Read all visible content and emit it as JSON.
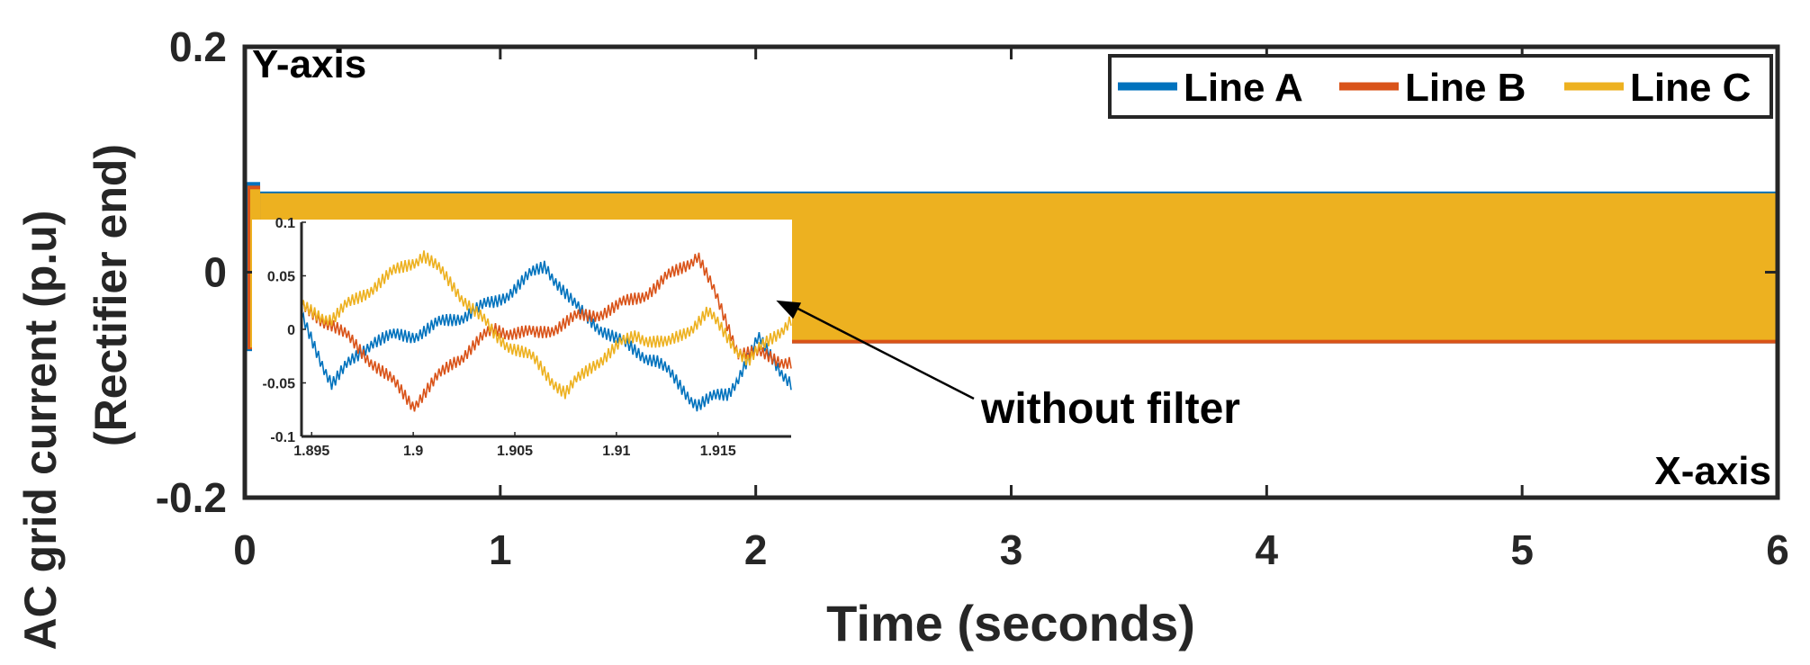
{
  "chart_data": [
    {
      "type": "line",
      "title": "",
      "xlabel": "Time (seconds)",
      "ylabel_lines": [
        "AC grid current (p.u)",
        "(Rectifier end)"
      ],
      "xlim": [
        0,
        6
      ],
      "ylim": [
        -0.2,
        0.2
      ],
      "x_ticks": [
        0,
        1,
        2,
        3,
        4,
        5,
        6
      ],
      "x_tick_labels": [
        "0",
        "1",
        "2",
        "3",
        "4",
        "5",
        "6"
      ],
      "y_ticks": [
        -0.2,
        0,
        0.2
      ],
      "y_tick_labels": [
        "-0.2",
        "0",
        "0.2"
      ],
      "corner_labels": {
        "y_axis": "Y-axis",
        "x_axis": "X-axis"
      },
      "legend": {
        "position": "top-right",
        "entries": [
          "Line A",
          "Line B",
          "Line C"
        ]
      },
      "series": [
        {
          "name": "Line A",
          "color": "#0072BD",
          "band": [
            -0.06,
            0.07
          ]
        },
        {
          "name": "Line B",
          "color": "#D95319",
          "band": [
            -0.06,
            0.07
          ]
        },
        {
          "name": "Line C",
          "color": "#EDB120",
          "band": [
            -0.06,
            0.07
          ]
        }
      ],
      "startup_spike": {
        "x_range": [
          0,
          0.06
        ],
        "ymax": 0.08,
        "ymin": -0.07
      },
      "annotation": {
        "text": "without filter",
        "arrow_target": {
          "x": 2.08,
          "y": -0.025
        }
      }
    },
    {
      "type": "line",
      "title": "",
      "inset": true,
      "xlim": [
        1.8945,
        1.9186
      ],
      "ylim": [
        -0.1,
        0.1
      ],
      "x_ticks": [
        1.895,
        1.9,
        1.905,
        1.91,
        1.915
      ],
      "x_tick_labels": [
        "1.895",
        "1.9",
        "1.905",
        "1.91",
        "1.915"
      ],
      "y_ticks": [
        -0.1,
        -0.05,
        0,
        0.05,
        0.1
      ],
      "y_tick_labels": [
        "-0.1",
        "-0.05",
        "0",
        "0.05",
        "0.1"
      ],
      "series": [
        {
          "name": "Line A",
          "color": "#0072BD",
          "x": [
            1.8945,
            1.896,
            1.898,
            1.9,
            1.902,
            1.904,
            1.9065,
            1.908,
            1.91,
            1.912,
            1.914,
            1.9155,
            1.917,
            1.9186
          ],
          "y": [
            0.01,
            -0.05,
            -0.01,
            -0.005,
            0.01,
            0.025,
            0.06,
            0.02,
            -0.01,
            -0.03,
            -0.07,
            -0.06,
            -0.01,
            -0.05
          ]
        },
        {
          "name": "Line B",
          "color": "#D95319",
          "x": [
            1.8945,
            1.896,
            1.898,
            1.9,
            1.902,
            1.904,
            1.906,
            1.908,
            1.91,
            1.912,
            1.914,
            1.916,
            1.9186
          ],
          "y": [
            0.02,
            0.005,
            -0.03,
            -0.07,
            -0.03,
            0.0,
            -0.005,
            0.01,
            0.02,
            0.04,
            0.07,
            -0.02,
            -0.03
          ]
        },
        {
          "name": "Line C",
          "color": "#EDB120",
          "x": [
            1.8945,
            1.896,
            1.898,
            1.9005,
            1.902,
            1.904,
            1.906,
            1.9075,
            1.909,
            1.911,
            1.9125,
            1.9145,
            1.9165,
            1.9186
          ],
          "y": [
            0.02,
            0.01,
            0.04,
            0.07,
            0.04,
            -0.005,
            -0.03,
            -0.06,
            -0.03,
            -0.005,
            -0.015,
            0.015,
            -0.03,
            0.01
          ]
        }
      ]
    }
  ]
}
